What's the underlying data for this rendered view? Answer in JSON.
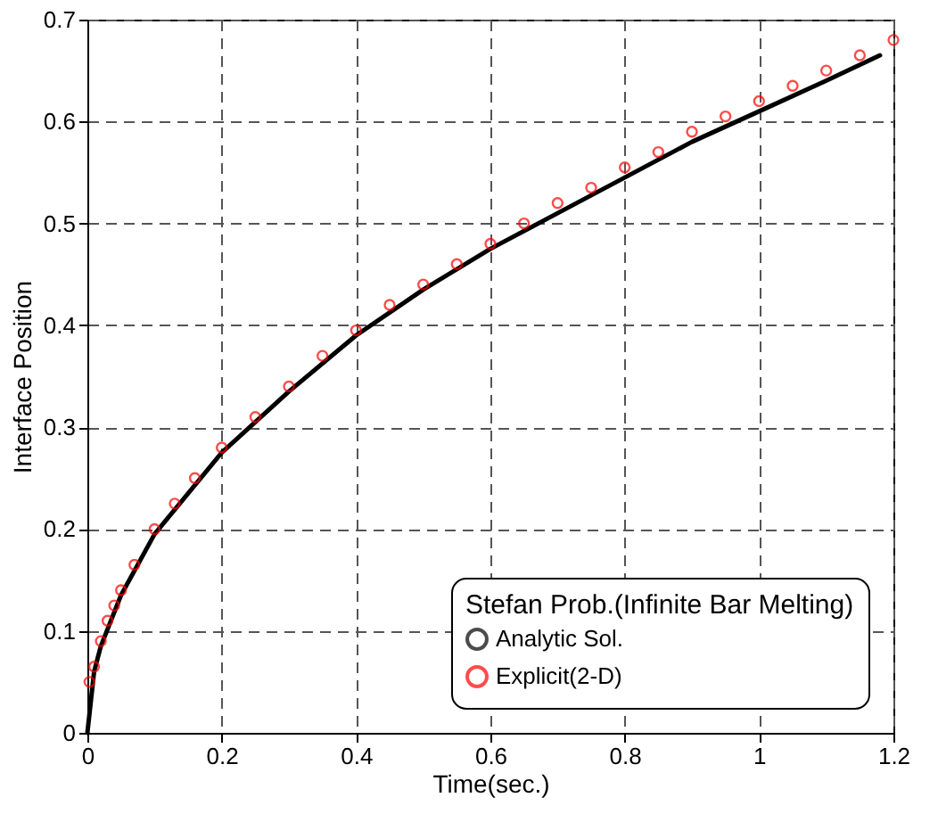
{
  "chart_data": {
    "type": "line",
    "xlabel": "Time(sec.)",
    "ylabel": "Interface Position",
    "legend_title": "Stefan Prob.(Infinite Bar Melting)",
    "legend": "bottom right",
    "grid": true,
    "line_style": "dashed",
    "xlim": [
      0,
      1.2
    ],
    "xticks": [
      0,
      0.2,
      0.4,
      0.6,
      0.8,
      1,
      1.2
    ],
    "ylim": [
      0,
      0.7
    ],
    "yticks": [
      0,
      0.1,
      0.2,
      0.3,
      0.4,
      0.5,
      0.6,
      0.7
    ],
    "series": [
      {
        "name": "Analytic Sol.",
        "color": "#000000",
        "marker": "none",
        "line_style": "solid",
        "x": [
          0,
          0.01,
          0.02,
          0.05,
          0.1,
          0.2,
          0.3,
          0.4,
          0.5,
          0.6,
          0.7,
          0.8,
          0.9,
          1.0,
          1.1,
          1.18
        ],
        "values": [
          0,
          0.06,
          0.085,
          0.135,
          0.195,
          0.275,
          0.335,
          0.39,
          0.435,
          0.475,
          0.51,
          0.545,
          0.58,
          0.61,
          0.64,
          0.665
        ]
      },
      {
        "name": "Explicit(2-D)",
        "type": "scatter",
        "color": "#ff0000",
        "marker": "circle",
        "x": [
          0.003,
          0.01,
          0.02,
          0.03,
          0.04,
          0.05,
          0.07,
          0.1,
          0.13,
          0.16,
          0.2,
          0.25,
          0.3,
          0.35,
          0.4,
          0.45,
          0.5,
          0.55,
          0.6,
          0.65,
          0.7,
          0.75,
          0.8,
          0.85,
          0.9,
          0.95,
          1.0,
          1.05,
          1.1,
          1.15,
          1.2
        ],
        "values": [
          0.05,
          0.065,
          0.09,
          0.11,
          0.125,
          0.14,
          0.165,
          0.2,
          0.225,
          0.25,
          0.28,
          0.31,
          0.34,
          0.37,
          0.395,
          0.42,
          0.44,
          0.46,
          0.48,
          0.5,
          0.52,
          0.535,
          0.555,
          0.57,
          0.59,
          0.605,
          0.62,
          0.635,
          0.65,
          0.665,
          0.68
        ]
      }
    ]
  }
}
